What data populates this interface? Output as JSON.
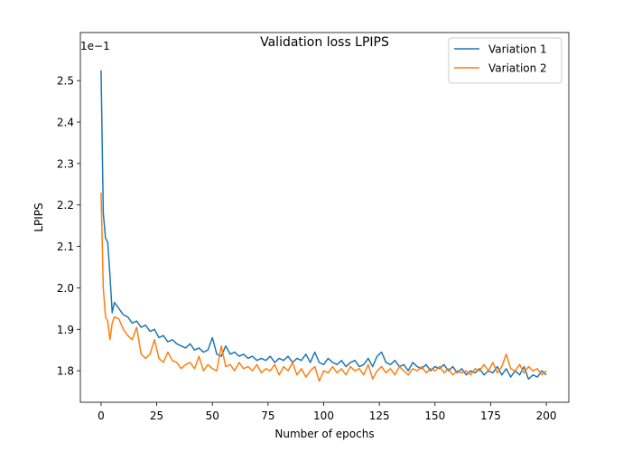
{
  "chart_data": {
    "type": "line",
    "title": "Validation loss LPIPS",
    "x_label": "Number of epochs",
    "y_label": "LPIPS",
    "y_offset_text": "1e−1",
    "legend": "upper right",
    "grid": false,
    "xlim": [
      -9.3,
      210.1
    ],
    "xticks": [
      0,
      25,
      50,
      75,
      100,
      125,
      150,
      175,
      200
    ],
    "ylim": [
      1.724,
      2.616
    ],
    "yticks": [
      1.8,
      1.9,
      {
        "value": 2.0,
        "label": "2.0"
      },
      2.1,
      2.2,
      2.3,
      2.4,
      2.5
    ],
    "x": [
      0,
      1,
      2,
      3,
      4,
      5,
      6,
      8,
      10,
      12,
      14,
      16,
      18,
      20,
      22,
      24,
      26,
      28,
      30,
      32,
      34,
      36,
      38,
      40,
      42,
      44,
      46,
      48,
      50,
      52,
      54,
      56,
      58,
      60,
      62,
      64,
      66,
      68,
      70,
      72,
      74,
      76,
      78,
      80,
      82,
      84,
      86,
      88,
      90,
      92,
      94,
      96,
      98,
      100,
      102,
      104,
      106,
      108,
      110,
      112,
      114,
      116,
      118,
      120,
      122,
      124,
      126,
      128,
      130,
      132,
      134,
      136,
      138,
      140,
      142,
      144,
      146,
      148,
      150,
      152,
      154,
      156,
      158,
      160,
      162,
      164,
      166,
      168,
      170,
      172,
      174,
      176,
      178,
      180,
      182,
      184,
      186,
      188,
      190,
      192,
      194,
      196,
      198,
      200
    ],
    "series": [
      {
        "name": "Variation 1",
        "color": "#1f77b4",
        "values": [
          2.525,
          2.18,
          2.12,
          2.11,
          2.03,
          1.94,
          1.965,
          1.95,
          1.935,
          1.93,
          1.915,
          1.92,
          1.905,
          1.91,
          1.895,
          1.9,
          1.88,
          1.885,
          1.87,
          1.875,
          1.865,
          1.86,
          1.855,
          1.865,
          1.85,
          1.855,
          1.845,
          1.85,
          1.88,
          1.84,
          1.835,
          1.86,
          1.84,
          1.845,
          1.835,
          1.84,
          1.83,
          1.835,
          1.825,
          1.83,
          1.825,
          1.835,
          1.82,
          1.83,
          1.825,
          1.835,
          1.82,
          1.83,
          1.825,
          1.84,
          1.82,
          1.845,
          1.82,
          1.815,
          1.83,
          1.82,
          1.815,
          1.825,
          1.81,
          1.82,
          1.825,
          1.81,
          1.815,
          1.83,
          1.81,
          1.835,
          1.845,
          1.82,
          1.815,
          1.825,
          1.81,
          1.815,
          1.8,
          1.82,
          1.81,
          1.805,
          1.815,
          1.8,
          1.81,
          1.805,
          1.815,
          1.8,
          1.81,
          1.795,
          1.805,
          1.79,
          1.8,
          1.795,
          1.805,
          1.79,
          1.8,
          1.795,
          1.81,
          1.79,
          1.805,
          1.785,
          1.8,
          1.79,
          1.81,
          1.78,
          1.79,
          1.785,
          1.8,
          1.79
        ]
      },
      {
        "name": "Variation 2",
        "color": "#ff7f0e",
        "values": [
          2.23,
          2.0,
          1.93,
          1.92,
          1.875,
          1.915,
          1.93,
          1.925,
          1.9,
          1.885,
          1.875,
          1.905,
          1.84,
          1.83,
          1.84,
          1.875,
          1.83,
          1.82,
          1.845,
          1.825,
          1.82,
          1.805,
          1.815,
          1.82,
          1.805,
          1.835,
          1.8,
          1.815,
          1.805,
          1.8,
          1.86,
          1.81,
          1.815,
          1.8,
          1.82,
          1.805,
          1.81,
          1.8,
          1.815,
          1.795,
          1.805,
          1.8,
          1.815,
          1.79,
          1.81,
          1.8,
          1.82,
          1.79,
          1.805,
          1.785,
          1.8,
          1.81,
          1.775,
          1.8,
          1.795,
          1.81,
          1.795,
          1.805,
          1.79,
          1.81,
          1.8,
          1.805,
          1.79,
          1.815,
          1.78,
          1.8,
          1.81,
          1.795,
          1.805,
          1.79,
          1.81,
          1.8,
          1.79,
          1.805,
          1.8,
          1.81,
          1.795,
          1.805,
          1.8,
          1.81,
          1.795,
          1.805,
          1.79,
          1.8,
          1.795,
          1.8,
          1.79,
          1.805,
          1.8,
          1.815,
          1.8,
          1.82,
          1.795,
          1.81,
          1.84,
          1.805,
          1.8,
          1.815,
          1.795,
          1.81,
          1.8,
          1.805,
          1.79,
          1.8
        ]
      }
    ]
  }
}
